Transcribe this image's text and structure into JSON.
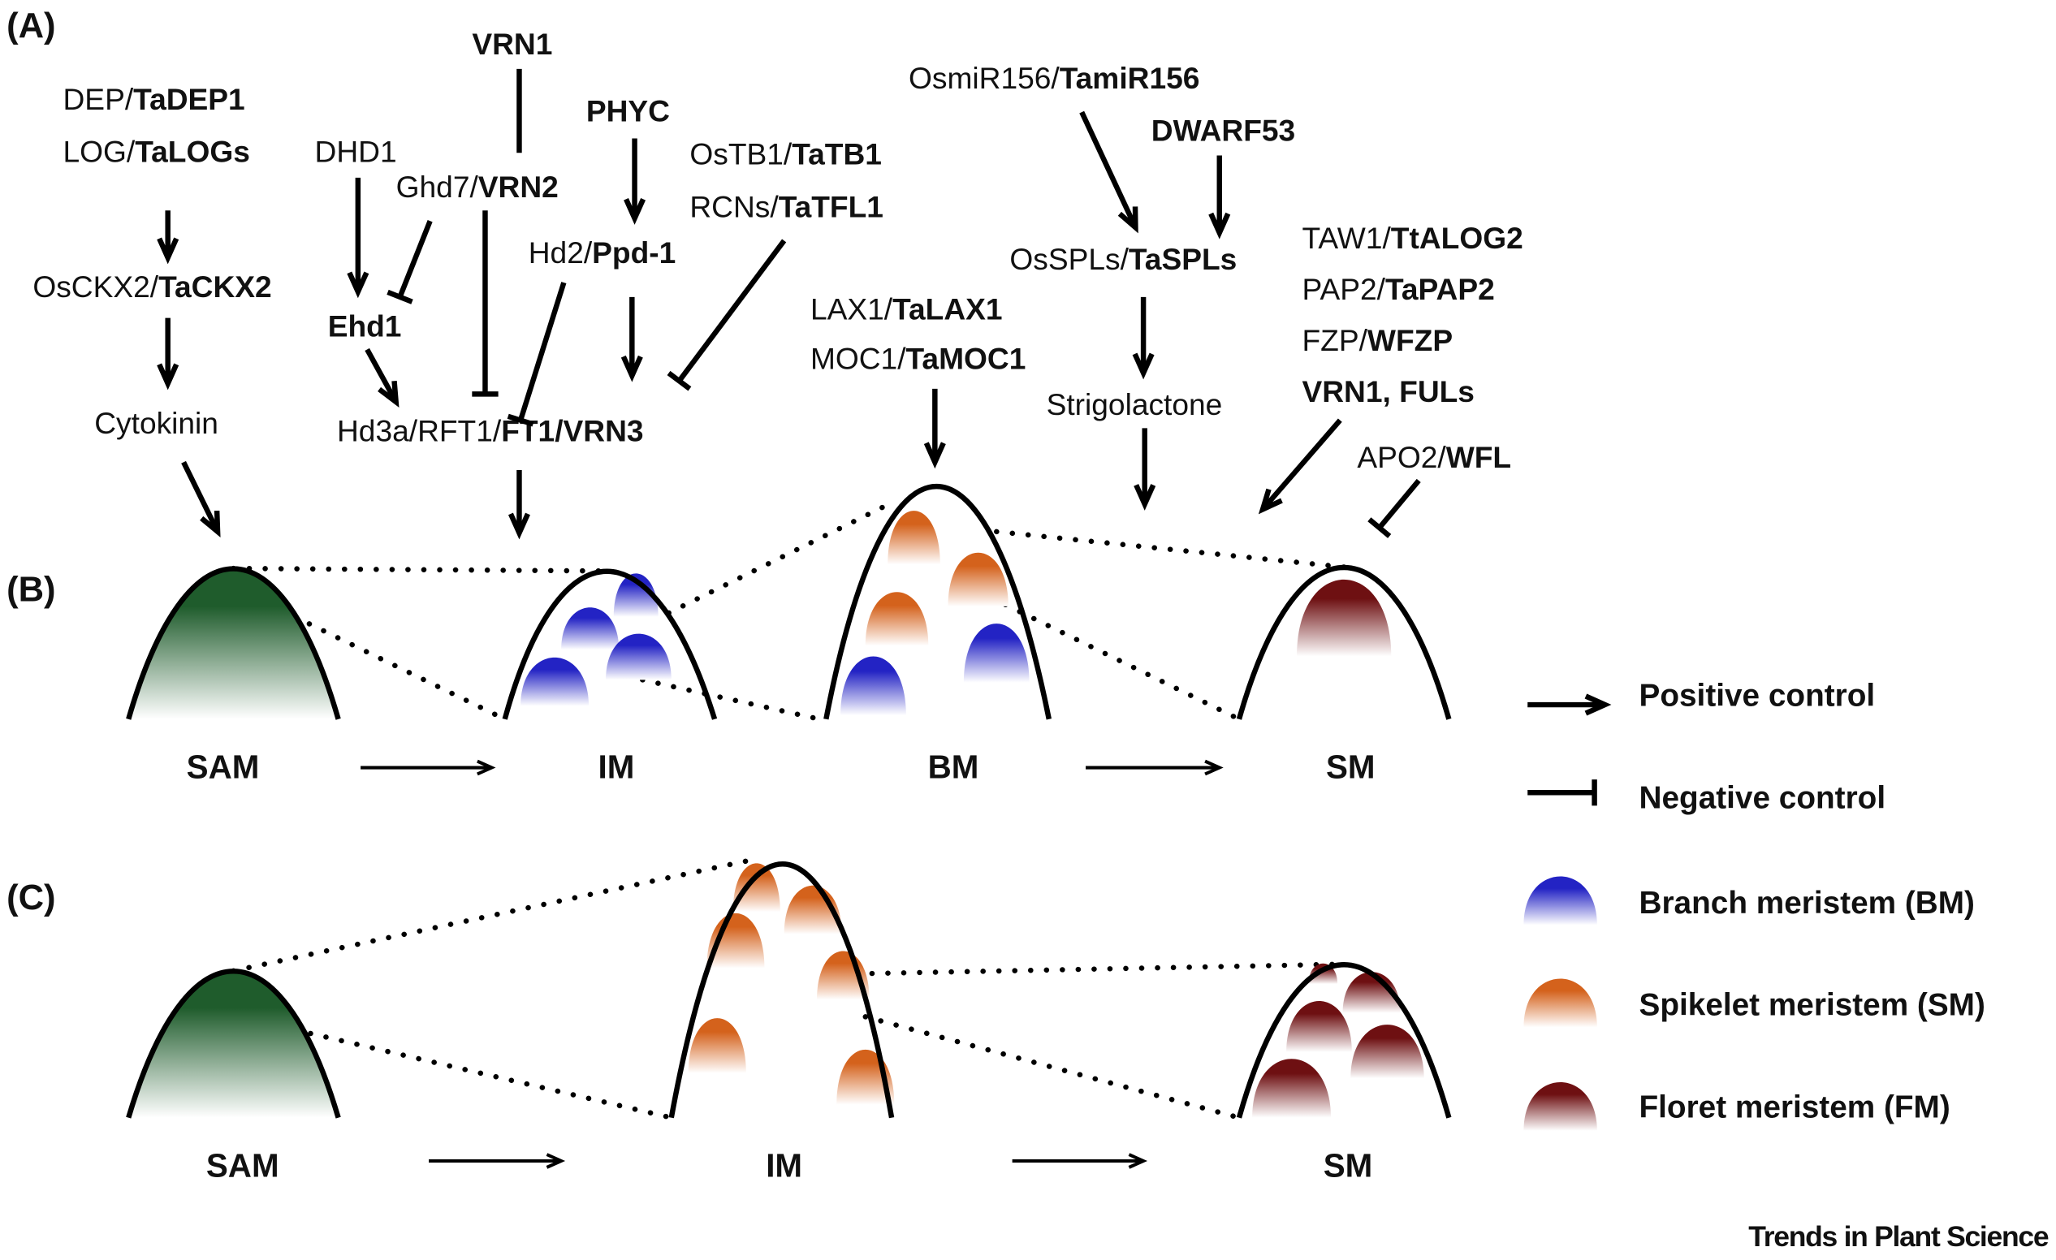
{
  "panels": {
    "a": "(A)",
    "b": "(B)",
    "c": "(C)"
  },
  "labels": {
    "vrn1_top": [
      "",
      "VRN1"
    ],
    "dep": [
      "DEP/",
      "TaDEP1"
    ],
    "log": [
      "LOG/",
      "TaLOGs"
    ],
    "dhd1": [
      "DHD1",
      ""
    ],
    "ghd7": [
      "Ghd7/",
      "VRN2"
    ],
    "phyc": [
      "",
      "PHYC"
    ],
    "ostb1": [
      "OsTB1/",
      "TaTB1"
    ],
    "rcns": [
      "RCNs/",
      "TaTFL1"
    ],
    "hd2": [
      "Hd2/",
      "Ppd-1"
    ],
    "osckx2": [
      "OsCKX2/",
      "TaCKX2"
    ],
    "ehd1": [
      "",
      "Ehd1"
    ],
    "cytokinin": [
      "Cytokinin",
      ""
    ],
    "hd3a": [
      "Hd3a/RFT1/",
      "FT1/VRN3"
    ],
    "osmir156": [
      "OsmiR156/",
      "TamiR156"
    ],
    "dwarf53": [
      "",
      "DWARF53"
    ],
    "osspls": [
      "OsSPLs/",
      "TaSPLs"
    ],
    "lax1": [
      "LAX1/",
      "TaLAX1"
    ],
    "moc1": [
      "MOC1/",
      "TaMOC1"
    ],
    "taw1": [
      "TAW1/",
      "TtALOG2"
    ],
    "pap2": [
      "PAP2/",
      "TaPAP2"
    ],
    "fzp": [
      "FZP/",
      "WFZP"
    ],
    "vrn1_fuls": [
      "",
      "VRN1, FULs"
    ],
    "strigolactone": [
      "Strigolactone",
      ""
    ],
    "apo2": [
      "APO2/",
      "WFL"
    ]
  },
  "stages_b": [
    "SAM",
    "IM",
    "BM",
    "SM"
  ],
  "stages_c": [
    "SAM",
    "IM",
    "SM"
  ],
  "legend": [
    {
      "symbol": "arrow-icon",
      "label": "Positive control"
    },
    {
      "symbol": "inhibit-bar-icon",
      "label": "Negative control"
    },
    {
      "symbol": "blob",
      "label": "Branch meristem (BM)",
      "color": "#2323c4"
    },
    {
      "symbol": "blob",
      "label": "Spikelet meristem (SM)",
      "color": "#d4621c"
    },
    {
      "symbol": "blob",
      "label": "Floret meristem (FM)",
      "color": "#6e1012"
    }
  ],
  "colors": {
    "sam": "#1f5c2c",
    "bm": "#2323c4",
    "sm": "#d4621c",
    "fm": "#6e1012"
  },
  "footer": "Trends in Plant Science"
}
